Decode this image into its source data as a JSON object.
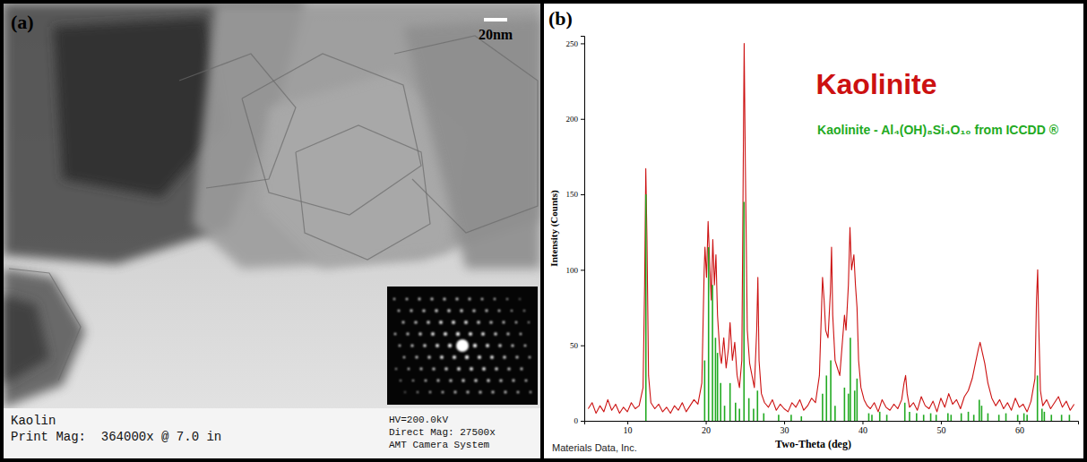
{
  "image_panel": {
    "panel_label": "(a)",
    "scale_bar": "20nm",
    "info_left": [
      "Kaolin",
      "Print Mag:  364000x @ 7.0 in"
    ],
    "info_right": [
      "HV=200.0kV",
      "Direct Mag: 27500x",
      "AMT Camera System"
    ]
  },
  "chart_data": {
    "type": "line",
    "panel_label": "(b)",
    "x_label": "Two-Theta (deg)",
    "y_label": "Intensity (Counts)",
    "annotations": [
      "Materials Data, Inc."
    ],
    "xlim": [
      4.5,
      67.5
    ],
    "xticks": [
      10,
      20,
      30,
      40,
      50,
      60
    ],
    "ylim": [
      0,
      255
    ],
    "yticks": [
      0,
      50,
      100,
      150,
      200,
      250
    ],
    "grid": false,
    "legend": "top-right",
    "series": [
      {
        "name": "Kaolinite",
        "type": "line",
        "color": "#cc1111",
        "x": [
          5,
          5.5,
          6,
          6.5,
          7,
          7.5,
          8,
          8.5,
          9,
          9.5,
          10,
          10.5,
          11,
          11.5,
          12,
          12.2,
          12.35,
          12.5,
          12.7,
          13,
          13.5,
          14,
          14.5,
          15,
          15.5,
          16,
          16.5,
          17,
          17.5,
          18,
          18.5,
          19,
          19.5,
          19.8,
          19.9,
          20.1,
          20.3,
          20.5,
          20.7,
          20.9,
          21.1,
          21.3,
          21.5,
          21.8,
          22,
          22.3,
          22.6,
          22.9,
          23.1,
          23.4,
          23.7,
          24,
          24.3,
          24.6,
          24.8,
          24.9,
          25.05,
          25.3,
          25.6,
          25.9,
          26.2,
          26.5,
          26.65,
          26.8,
          27.1,
          27.5,
          28,
          28.5,
          29,
          29.5,
          30,
          30.5,
          31,
          31.5,
          32,
          32.5,
          33,
          33.5,
          34,
          34.5,
          34.9,
          35.1,
          35.3,
          35.6,
          35.9,
          36.05,
          36.2,
          36.5,
          36.8,
          37.1,
          37.4,
          37.7,
          37.9,
          38.2,
          38.4,
          38.6,
          38.9,
          39.1,
          39.3,
          39.5,
          39.8,
          40.2,
          40.6,
          41,
          41.5,
          42,
          42.5,
          43,
          43.5,
          44,
          44.5,
          45,
          45.3,
          45.5,
          45.7,
          46,
          46.5,
          47,
          47.5,
          48,
          48.5,
          49,
          49.5,
          50,
          50.5,
          51,
          51.5,
          52,
          52.5,
          53,
          53.5,
          54,
          54.4,
          54.8,
          55,
          55.3,
          55.6,
          56,
          56.5,
          57,
          57.5,
          58,
          58.5,
          59,
          59.5,
          60,
          60.5,
          61,
          61.5,
          62,
          62.2,
          62.35,
          62.5,
          62.7,
          63,
          63.5,
          64,
          64.5,
          65,
          65.5,
          66,
          66.5,
          67
        ],
        "values": [
          8,
          12,
          5,
          10,
          6,
          14,
          7,
          11,
          5,
          9,
          6,
          12,
          8,
          10,
          22,
          90,
          167,
          120,
          30,
          12,
          8,
          11,
          6,
          9,
          5,
          10,
          7,
          12,
          6,
          10,
          14,
          11,
          25,
          100,
          115,
          95,
          132,
          105,
          80,
          120,
          90,
          110,
          70,
          45,
          38,
          55,
          35,
          48,
          65,
          40,
          52,
          30,
          22,
          40,
          180,
          250,
          170,
          60,
          38,
          30,
          22,
          60,
          95,
          40,
          18,
          12,
          9,
          14,
          7,
          11,
          8,
          6,
          12,
          9,
          14,
          7,
          10,
          15,
          12,
          30,
          95,
          80,
          60,
          55,
          85,
          115,
          70,
          40,
          35,
          30,
          50,
          70,
          60,
          90,
          128,
          100,
          110,
          90,
          75,
          40,
          22,
          14,
          10,
          8,
          12,
          6,
          14,
          9,
          7,
          11,
          8,
          14,
          25,
          30,
          18,
          9,
          12,
          7,
          16,
          10,
          8,
          13,
          6,
          15,
          9,
          18,
          11,
          14,
          8,
          16,
          20,
          28,
          38,
          48,
          52,
          45,
          38,
          25,
          15,
          10,
          14,
          8,
          12,
          7,
          15,
          9,
          11,
          6,
          13,
          28,
          80,
          100,
          60,
          20,
          10,
          14,
          8,
          12,
          16,
          9,
          13,
          7,
          11
        ]
      },
      {
        "name": "Kaolinite - Al₄(OH)₈Si₄O₁₀ from ICCDD ®",
        "type": "bar",
        "color": "#22aa22",
        "x": [
          12.36,
          19.86,
          20.36,
          20.86,
          21.24,
          21.5,
          21.9,
          22.4,
          23.1,
          23.8,
          24.3,
          24.88,
          25.5,
          26.1,
          26.6,
          27.4,
          29.3,
          30.9,
          32.2,
          34.9,
          35.4,
          35.95,
          36.5,
          37.7,
          38.2,
          38.45,
          39,
          39.3,
          40.8,
          41.2,
          42.2,
          43.1,
          45.4,
          46,
          46.9,
          47.8,
          48.7,
          49.4,
          50.9,
          51.3,
          52.6,
          53.5,
          54.2,
          54.9,
          55.2,
          56,
          57.4,
          58.3,
          59.8,
          60.6,
          61,
          62.32,
          62.9,
          63.2,
          64.1,
          65.4,
          66.4
        ],
        "values": [
          150,
          40,
          115,
          90,
          55,
          45,
          25,
          10,
          25,
          12,
          8,
          145,
          15,
          8,
          20,
          5,
          4,
          4,
          3,
          18,
          30,
          40,
          10,
          22,
          18,
          55,
          20,
          28,
          5,
          4,
          6,
          4,
          12,
          6,
          5,
          4,
          5,
          4,
          5,
          4,
          5,
          6,
          4,
          14,
          10,
          5,
          4,
          5,
          4,
          5,
          4,
          30,
          8,
          6,
          4,
          4,
          4
        ]
      }
    ]
  }
}
